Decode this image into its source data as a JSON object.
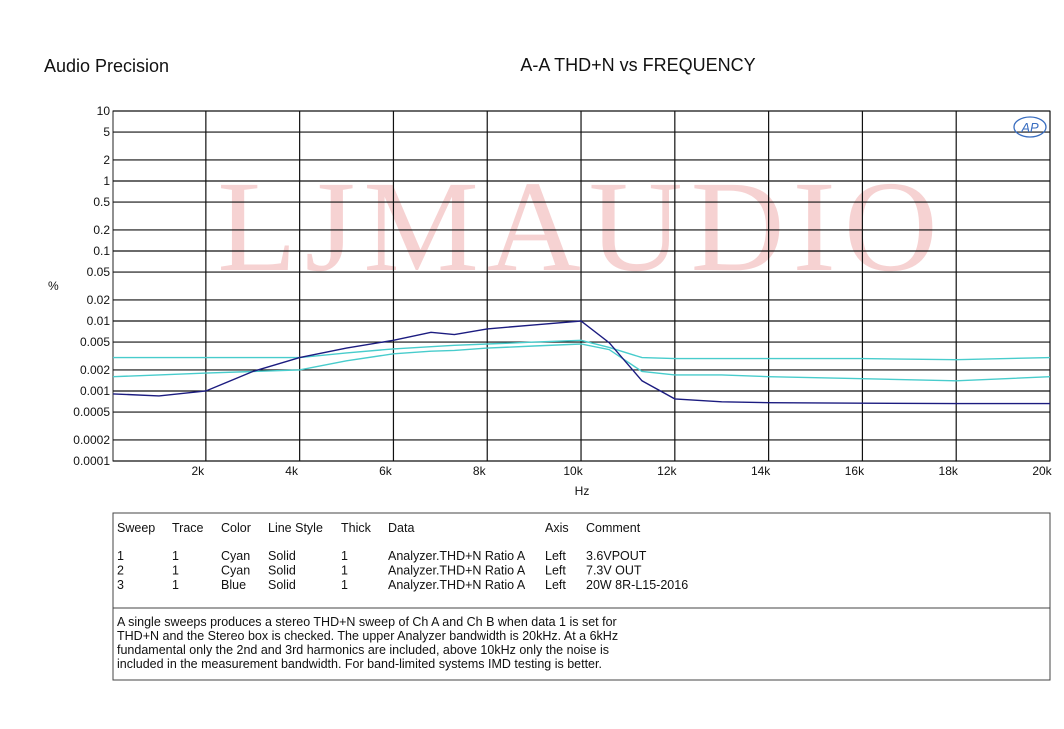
{
  "brand": "Audio Precision",
  "chart_data": {
    "type": "line",
    "title": "A-A THD+N vs FREQUENCY",
    "watermark": "LJMAUDIO",
    "xlabel": "Hz",
    "ylabel": "%",
    "ylog": true,
    "grid": true,
    "xlim": [
      20,
      20000
    ],
    "ylim": [
      0.0001,
      10
    ],
    "xticks": [
      {
        "value": 2000,
        "label": "2k"
      },
      {
        "value": 4000,
        "label": "4k"
      },
      {
        "value": 6000,
        "label": "6k"
      },
      {
        "value": 8000,
        "label": "8k"
      },
      {
        "value": 10000,
        "label": "10k"
      },
      {
        "value": 12000,
        "label": "12k"
      },
      {
        "value": 14000,
        "label": "14k"
      },
      {
        "value": 16000,
        "label": "16k"
      },
      {
        "value": 18000,
        "label": "18k"
      },
      {
        "value": 20000,
        "label": "20k"
      }
    ],
    "yticks": [
      10,
      5,
      2,
      1,
      0.5,
      0.2,
      0.1,
      0.05,
      0.02,
      0.01,
      0.005,
      0.002,
      0.001,
      0.0005,
      0.0002,
      0.0001
    ],
    "x": [
      20,
      1000,
      2000,
      3000,
      4000,
      5000,
      6000,
      6800,
      7300,
      8000,
      9000,
      10000,
      10600,
      11300,
      12000,
      13000,
      14000,
      16000,
      18000,
      20000
    ],
    "series": [
      {
        "name": "3.6VPOUT",
        "color": "#48cccc",
        "values": [
          0.0016,
          0.0017,
          0.0018,
          0.0019,
          0.002,
          0.0027,
          0.0034,
          0.0037,
          0.0038,
          0.0041,
          0.0044,
          0.0047,
          0.0039,
          0.0019,
          0.0017,
          0.0017,
          0.0016,
          0.0015,
          0.0014,
          0.0016
        ]
      },
      {
        "name": "7.3V OUT",
        "color": "#48cccc",
        "values": [
          0.003,
          0.003,
          0.003,
          0.003,
          0.003,
          0.0035,
          0.004,
          0.0043,
          0.0045,
          0.0047,
          0.005,
          0.0053,
          0.0042,
          0.003,
          0.0029,
          0.0029,
          0.0029,
          0.0029,
          0.0028,
          0.003
        ]
      },
      {
        "name": "20W 8R-L15-2016",
        "color": "#1c1c80",
        "values": [
          0.00091,
          0.00085,
          0.001,
          0.0019,
          0.003,
          0.0041,
          0.0053,
          0.0069,
          0.0064,
          0.0077,
          0.0088,
          0.01,
          0.0049,
          0.0014,
          0.00077,
          0.0007,
          0.00068,
          0.00067,
          0.00066,
          0.00066
        ]
      }
    ],
    "sweep_table": {
      "columns": [
        "Sweep",
        "Trace",
        "Color",
        "Line Style",
        "Thick",
        "Data",
        "Axis",
        "Comment"
      ],
      "rows": [
        [
          "1",
          "1",
          "Cyan",
          "Solid",
          "1",
          "Analyzer.THD+N Ratio A",
          "Left"
        ],
        [
          "2",
          "1",
          "Cyan",
          "Solid",
          "1",
          "Analyzer.THD+N Ratio A",
          "Left"
        ],
        [
          "3",
          "1",
          "Blue",
          "Solid",
          "1",
          "Analyzer.THD+N Ratio A",
          "Left"
        ]
      ]
    },
    "note": [
      "A single sweeps produces a stereo THD+N sweep of Ch A and Ch B when data 1 is set for",
      "THD+N and the Stereo box is checked.  The upper Analyzer bandwidth is 20kHz.  At a 6kHz",
      "fundamental only the 2nd and 3rd harmonics are included, above 10kHz only the noise is",
      "included in the measurement bandwidth.  For band-limited systems IMD testing is better."
    ]
  }
}
